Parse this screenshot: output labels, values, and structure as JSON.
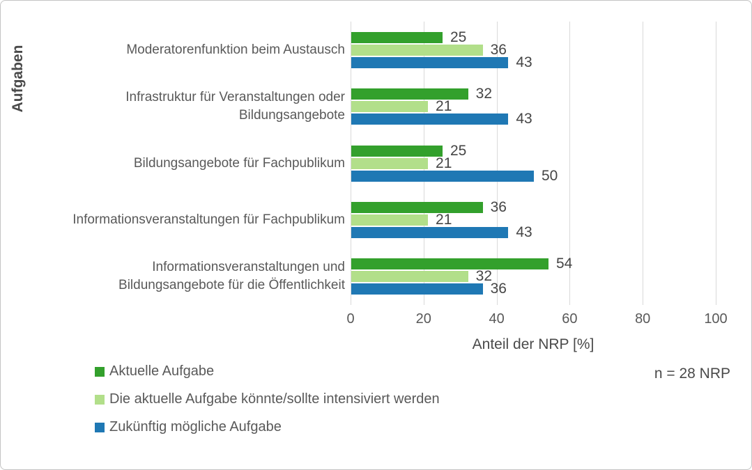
{
  "chart_data": {
    "type": "bar",
    "orientation": "horizontal",
    "title": "",
    "ylabel": "Aufgaben",
    "xlabel": "Anteil der NRP [%]",
    "note": "n = 28 NRP",
    "xlim": [
      0,
      100
    ],
    "xticks": [
      0,
      20,
      40,
      60,
      80,
      100
    ],
    "grid": true,
    "data_labels": true,
    "legend_position": "bottom-left",
    "categories": [
      "Moderatorenfunktion beim Austausch",
      "Infrastruktur für Veranstaltungen oder\nBildungsangebote",
      "Bildungsangebote für Fachpublikum",
      "Informationsveranstaltungen für Fachpublikum",
      "Informationsveranstaltungen und\nBildungsangebote für die Öffentlichkeit"
    ],
    "series": [
      {
        "name": "Aktuelle Aufgabe",
        "color": "#33A02C",
        "values": [
          25,
          32,
          25,
          36,
          54
        ]
      },
      {
        "name": "Die aktuelle Aufgabe könnte/sollte intensiviert werden",
        "color": "#B2DF8A",
        "values": [
          36,
          21,
          21,
          21,
          32
        ]
      },
      {
        "name": "Zukünftig mögliche Aufgabe",
        "color": "#1F78B4",
        "values": [
          43,
          43,
          50,
          43,
          36
        ]
      }
    ]
  },
  "colors": {
    "gridline": "#d9d9d9",
    "text": "#595959",
    "value_label": "#454545",
    "frame_border": "#c3c3c3"
  }
}
